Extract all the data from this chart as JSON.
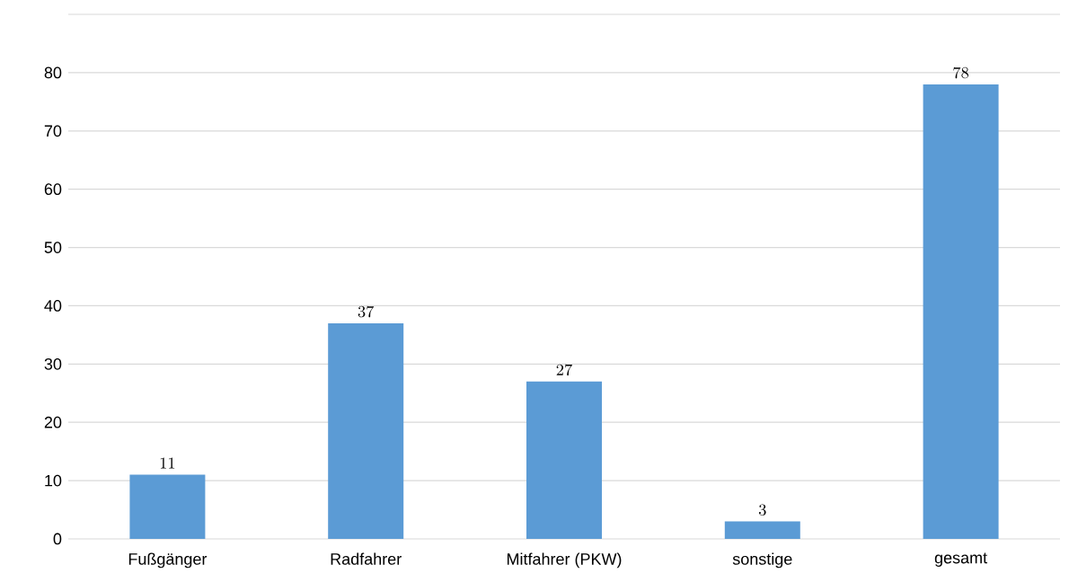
{
  "chart_data": {
    "type": "bar",
    "categories": [
      "Fußgänger",
      "Radfahrer",
      "Mitfahrer (PKW)",
      "sonstige",
      "gesamt"
    ],
    "values": [
      11,
      37,
      27,
      3,
      78
    ],
    "color": "#5b9bd5",
    "ylim": [
      0,
      90
    ],
    "yticks": [
      0,
      10,
      20,
      30,
      40,
      50,
      60,
      70,
      80,
      {
        "value": 90,
        "label": null
      }
    ],
    "grid": "y",
    "data_labels": true
  }
}
